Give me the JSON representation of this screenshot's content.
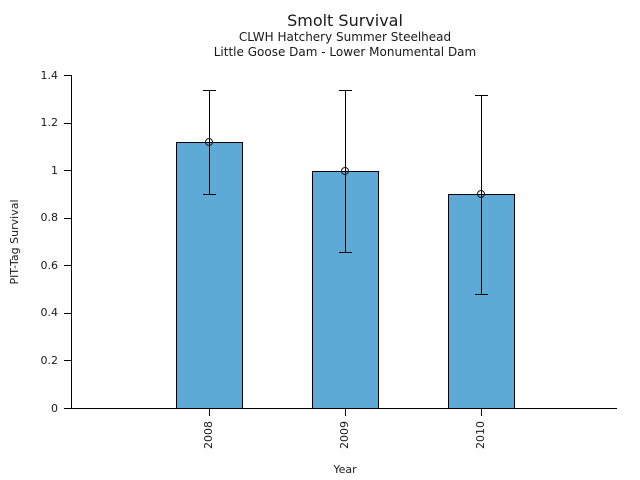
{
  "chart_data": {
    "type": "bar",
    "title": "Smolt Survival",
    "subtitle1": "CLWH Hatchery Summer Steelhead",
    "subtitle2": "Little Goose Dam - Lower Monumental Dam",
    "xlabel": "Year",
    "ylabel": "PIT-Tag Survival",
    "categories": [
      "2008",
      "2009",
      "2010"
    ],
    "values": [
      1.12,
      1.0,
      0.9
    ],
    "error_low": [
      0.9,
      0.66,
      0.48
    ],
    "error_high": [
      1.34,
      1.34,
      1.32
    ],
    "ylim": [
      0,
      1.4
    ],
    "ytick_labels": [
      "0",
      "0.2",
      "0.4",
      "0.6",
      "0.8",
      "1",
      "1.2",
      "1.4"
    ],
    "ytick_values": [
      0,
      0.2,
      0.4,
      0.6,
      0.8,
      1.0,
      1.2,
      1.4
    ],
    "grid": false,
    "legend_position": "none",
    "marker": "open-circle",
    "colors": {
      "bar_fill": "#5CAAD5",
      "bar_edge": "#000000",
      "error_bar": "#000000",
      "text": "#1a1a1a"
    }
  }
}
